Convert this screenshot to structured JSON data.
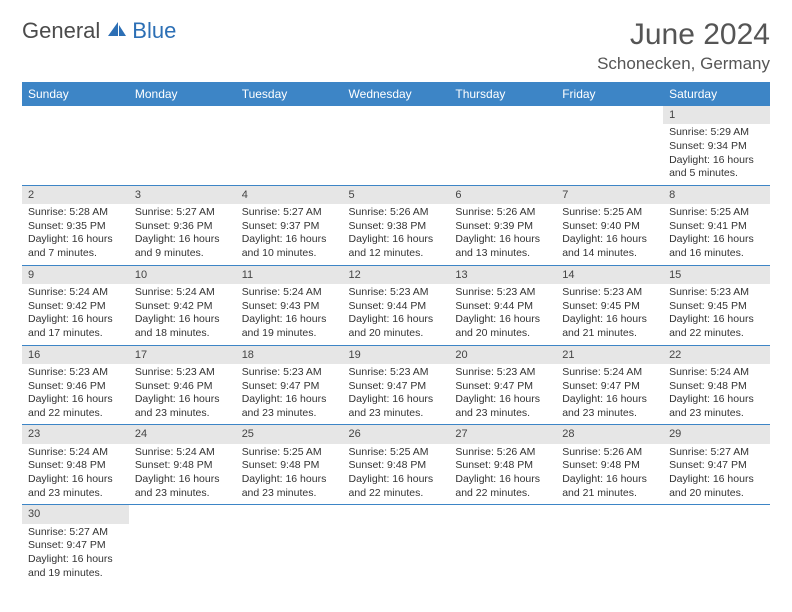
{
  "brand": {
    "part1": "General",
    "part2": "Blue"
  },
  "header": {
    "title": "June 2024",
    "location": "Schonecken, Germany"
  },
  "colors": {
    "header_bg": "#3d85c6",
    "header_text": "#ffffff",
    "daynum_bg": "#e6e6e6",
    "row_divider": "#3d85c6",
    "text": "#333333",
    "brand_blue": "#2c6fb5",
    "brand_grey": "#4b4b4b"
  },
  "days": [
    "Sunday",
    "Monday",
    "Tuesday",
    "Wednesday",
    "Thursday",
    "Friday",
    "Saturday"
  ],
  "weeks": [
    [
      null,
      null,
      null,
      null,
      null,
      null,
      {
        "n": "1",
        "sr": "Sunrise: 5:29 AM",
        "ss": "Sunset: 9:34 PM",
        "dl1": "Daylight: 16 hours",
        "dl2": "and 5 minutes."
      }
    ],
    [
      {
        "n": "2",
        "sr": "Sunrise: 5:28 AM",
        "ss": "Sunset: 9:35 PM",
        "dl1": "Daylight: 16 hours",
        "dl2": "and 7 minutes."
      },
      {
        "n": "3",
        "sr": "Sunrise: 5:27 AM",
        "ss": "Sunset: 9:36 PM",
        "dl1": "Daylight: 16 hours",
        "dl2": "and 9 minutes."
      },
      {
        "n": "4",
        "sr": "Sunrise: 5:27 AM",
        "ss": "Sunset: 9:37 PM",
        "dl1": "Daylight: 16 hours",
        "dl2": "and 10 minutes."
      },
      {
        "n": "5",
        "sr": "Sunrise: 5:26 AM",
        "ss": "Sunset: 9:38 PM",
        "dl1": "Daylight: 16 hours",
        "dl2": "and 12 minutes."
      },
      {
        "n": "6",
        "sr": "Sunrise: 5:26 AM",
        "ss": "Sunset: 9:39 PM",
        "dl1": "Daylight: 16 hours",
        "dl2": "and 13 minutes."
      },
      {
        "n": "7",
        "sr": "Sunrise: 5:25 AM",
        "ss": "Sunset: 9:40 PM",
        "dl1": "Daylight: 16 hours",
        "dl2": "and 14 minutes."
      },
      {
        "n": "8",
        "sr": "Sunrise: 5:25 AM",
        "ss": "Sunset: 9:41 PM",
        "dl1": "Daylight: 16 hours",
        "dl2": "and 16 minutes."
      }
    ],
    [
      {
        "n": "9",
        "sr": "Sunrise: 5:24 AM",
        "ss": "Sunset: 9:42 PM",
        "dl1": "Daylight: 16 hours",
        "dl2": "and 17 minutes."
      },
      {
        "n": "10",
        "sr": "Sunrise: 5:24 AM",
        "ss": "Sunset: 9:42 PM",
        "dl1": "Daylight: 16 hours",
        "dl2": "and 18 minutes."
      },
      {
        "n": "11",
        "sr": "Sunrise: 5:24 AM",
        "ss": "Sunset: 9:43 PM",
        "dl1": "Daylight: 16 hours",
        "dl2": "and 19 minutes."
      },
      {
        "n": "12",
        "sr": "Sunrise: 5:23 AM",
        "ss": "Sunset: 9:44 PM",
        "dl1": "Daylight: 16 hours",
        "dl2": "and 20 minutes."
      },
      {
        "n": "13",
        "sr": "Sunrise: 5:23 AM",
        "ss": "Sunset: 9:44 PM",
        "dl1": "Daylight: 16 hours",
        "dl2": "and 20 minutes."
      },
      {
        "n": "14",
        "sr": "Sunrise: 5:23 AM",
        "ss": "Sunset: 9:45 PM",
        "dl1": "Daylight: 16 hours",
        "dl2": "and 21 minutes."
      },
      {
        "n": "15",
        "sr": "Sunrise: 5:23 AM",
        "ss": "Sunset: 9:45 PM",
        "dl1": "Daylight: 16 hours",
        "dl2": "and 22 minutes."
      }
    ],
    [
      {
        "n": "16",
        "sr": "Sunrise: 5:23 AM",
        "ss": "Sunset: 9:46 PM",
        "dl1": "Daylight: 16 hours",
        "dl2": "and 22 minutes."
      },
      {
        "n": "17",
        "sr": "Sunrise: 5:23 AM",
        "ss": "Sunset: 9:46 PM",
        "dl1": "Daylight: 16 hours",
        "dl2": "and 23 minutes."
      },
      {
        "n": "18",
        "sr": "Sunrise: 5:23 AM",
        "ss": "Sunset: 9:47 PM",
        "dl1": "Daylight: 16 hours",
        "dl2": "and 23 minutes."
      },
      {
        "n": "19",
        "sr": "Sunrise: 5:23 AM",
        "ss": "Sunset: 9:47 PM",
        "dl1": "Daylight: 16 hours",
        "dl2": "and 23 minutes."
      },
      {
        "n": "20",
        "sr": "Sunrise: 5:23 AM",
        "ss": "Sunset: 9:47 PM",
        "dl1": "Daylight: 16 hours",
        "dl2": "and 23 minutes."
      },
      {
        "n": "21",
        "sr": "Sunrise: 5:24 AM",
        "ss": "Sunset: 9:47 PM",
        "dl1": "Daylight: 16 hours",
        "dl2": "and 23 minutes."
      },
      {
        "n": "22",
        "sr": "Sunrise: 5:24 AM",
        "ss": "Sunset: 9:48 PM",
        "dl1": "Daylight: 16 hours",
        "dl2": "and 23 minutes."
      }
    ],
    [
      {
        "n": "23",
        "sr": "Sunrise: 5:24 AM",
        "ss": "Sunset: 9:48 PM",
        "dl1": "Daylight: 16 hours",
        "dl2": "and 23 minutes."
      },
      {
        "n": "24",
        "sr": "Sunrise: 5:24 AM",
        "ss": "Sunset: 9:48 PM",
        "dl1": "Daylight: 16 hours",
        "dl2": "and 23 minutes."
      },
      {
        "n": "25",
        "sr": "Sunrise: 5:25 AM",
        "ss": "Sunset: 9:48 PM",
        "dl1": "Daylight: 16 hours",
        "dl2": "and 23 minutes."
      },
      {
        "n": "26",
        "sr": "Sunrise: 5:25 AM",
        "ss": "Sunset: 9:48 PM",
        "dl1": "Daylight: 16 hours",
        "dl2": "and 22 minutes."
      },
      {
        "n": "27",
        "sr": "Sunrise: 5:26 AM",
        "ss": "Sunset: 9:48 PM",
        "dl1": "Daylight: 16 hours",
        "dl2": "and 22 minutes."
      },
      {
        "n": "28",
        "sr": "Sunrise: 5:26 AM",
        "ss": "Sunset: 9:48 PM",
        "dl1": "Daylight: 16 hours",
        "dl2": "and 21 minutes."
      },
      {
        "n": "29",
        "sr": "Sunrise: 5:27 AM",
        "ss": "Sunset: 9:47 PM",
        "dl1": "Daylight: 16 hours",
        "dl2": "and 20 minutes."
      }
    ],
    [
      {
        "n": "30",
        "sr": "Sunrise: 5:27 AM",
        "ss": "Sunset: 9:47 PM",
        "dl1": "Daylight: 16 hours",
        "dl2": "and 19 minutes."
      },
      null,
      null,
      null,
      null,
      null,
      null
    ]
  ]
}
